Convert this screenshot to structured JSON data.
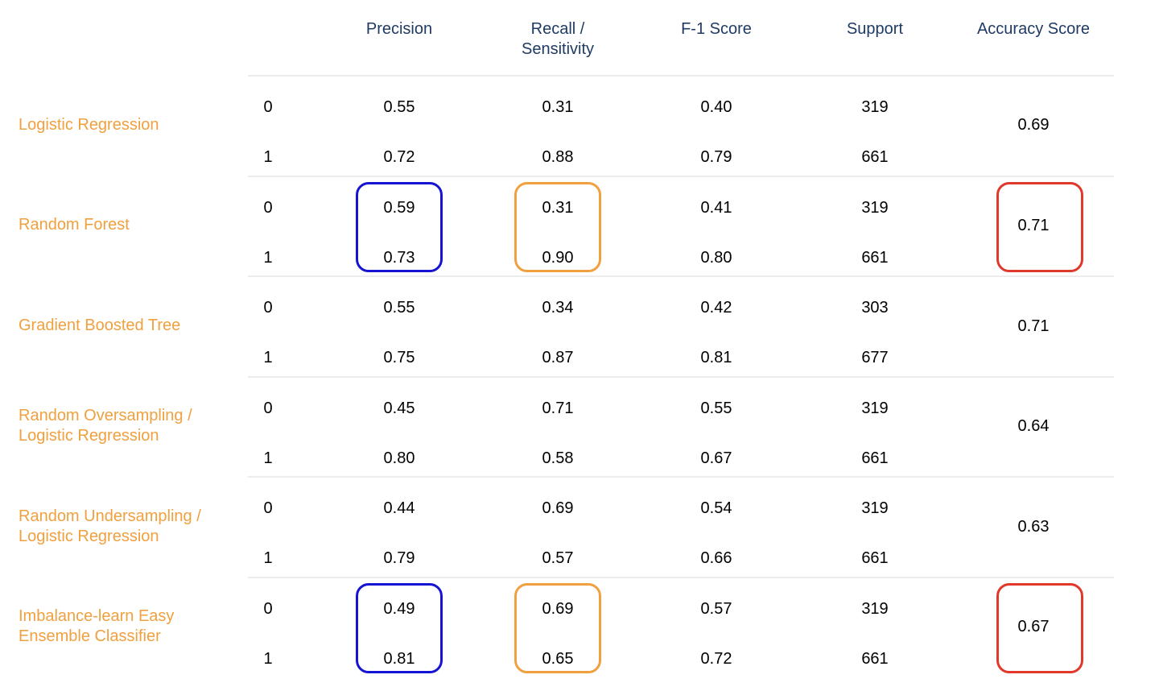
{
  "chart_data": {
    "type": "table",
    "columns": [
      "Precision",
      "Recall /\nSensitivity",
      "F-1 Score",
      "Support",
      "Accuracy Score"
    ],
    "rows": [
      {
        "model": "Logistic Regression",
        "classes": [
          {
            "label": "0",
            "precision": "0.55",
            "recall": "0.31",
            "f1": "0.40",
            "support": "319"
          },
          {
            "label": "1",
            "precision": "0.72",
            "recall": "0.88",
            "f1": "0.79",
            "support": "661"
          }
        ],
        "accuracy": "0.69"
      },
      {
        "model": "Random Forest",
        "classes": [
          {
            "label": "0",
            "precision": "0.59",
            "recall": "0.31",
            "f1": "0.41",
            "support": "319"
          },
          {
            "label": "1",
            "precision": "0.73",
            "recall": "0.90",
            "f1": "0.80",
            "support": "661"
          }
        ],
        "accuracy": "0.71"
      },
      {
        "model": "Gradient Boosted Tree",
        "classes": [
          {
            "label": "0",
            "precision": "0.55",
            "recall": "0.34",
            "f1": "0.42",
            "support": "303"
          },
          {
            "label": "1",
            "precision": "0.75",
            "recall": "0.87",
            "f1": "0.81",
            "support": "677"
          }
        ],
        "accuracy": "0.71"
      },
      {
        "model": "Random Oversampling /\nLogistic Regression",
        "classes": [
          {
            "label": "0",
            "precision": "0.45",
            "recall": "0.71",
            "f1": "0.55",
            "support": "319"
          },
          {
            "label": "1",
            "precision": "0.80",
            "recall": "0.58",
            "f1": "0.67",
            "support": "661"
          }
        ],
        "accuracy": "0.64"
      },
      {
        "model": "Random Undersampling /\nLogistic Regression",
        "classes": [
          {
            "label": "0",
            "precision": "0.44",
            "recall": "0.69",
            "f1": "0.54",
            "support": "319"
          },
          {
            "label": "1",
            "precision": "0.79",
            "recall": "0.57",
            "f1": "0.66",
            "support": "661"
          }
        ],
        "accuracy": "0.63"
      },
      {
        "model": "Imbalance-learn Easy\nEnsemble Classifier",
        "classes": [
          {
            "label": "0",
            "precision": "0.49",
            "recall": "0.69",
            "f1": "0.57",
            "support": "319"
          },
          {
            "label": "1",
            "precision": "0.81",
            "recall": "0.65",
            "f1": "0.72",
            "support": "661"
          }
        ],
        "accuracy": "0.67"
      }
    ],
    "highlights": [
      {
        "row": 1,
        "column": "precision",
        "color": "#1414d2"
      },
      {
        "row": 1,
        "column": "recall",
        "color": "#f0a03e"
      },
      {
        "row": 1,
        "column": "accuracy",
        "color": "#e0382b"
      },
      {
        "row": 5,
        "column": "precision",
        "color": "#1414d2"
      },
      {
        "row": 5,
        "column": "recall",
        "color": "#f0a03e"
      },
      {
        "row": 5,
        "column": "accuracy",
        "color": "#e0382b"
      }
    ],
    "colors": {
      "header_text": "#1f3b63",
      "model_text": "#f0a03e",
      "row_divider": "#ececec"
    }
  }
}
